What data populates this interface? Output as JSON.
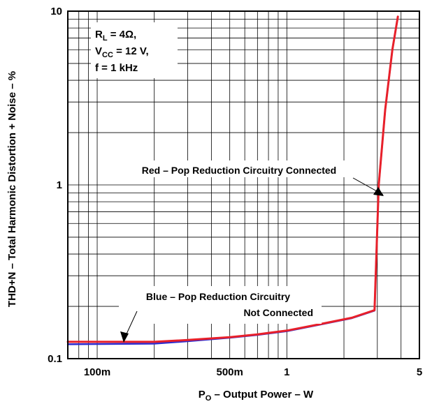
{
  "chart_data": {
    "type": "line",
    "x_scale": "log",
    "y_scale": "log",
    "xlim": [
      0.07,
      5
    ],
    "ylim": [
      0.1,
      10
    ],
    "grid": true,
    "x_ticks": [
      {
        "value": 0.1,
        "label": "100m"
      },
      {
        "value": 0.5,
        "label": "500m"
      },
      {
        "value": 1,
        "label": "1"
      },
      {
        "value": 5,
        "label": "5"
      }
    ],
    "y_ticks": [
      {
        "value": 0.1,
        "label": "0.1"
      },
      {
        "value": 1,
        "label": "1"
      },
      {
        "value": 10,
        "label": "10"
      }
    ],
    "xlabel": {
      "main": "P",
      "sub": "O",
      "rest": " – Output Power – W"
    },
    "ylabel": "THD+N – Total Harmonic Distortion + Noise – %",
    "conditions": [
      {
        "main": "R",
        "sub": "L",
        "rest": " = 4Ω,"
      },
      {
        "main": "V",
        "sub": "CC",
        "rest": " = 12 V,"
      },
      {
        "main": "f = 1 kHz",
        "sub": "",
        "rest": ""
      }
    ],
    "annotations": [
      {
        "lines": [
          "Red – Pop Reduction Circuitry Connected"
        ]
      },
      {
        "lines": [
          "Blue – Pop Reduction Circuitry",
          "Not Connected"
        ]
      }
    ],
    "series": [
      {
        "color": "#e8202a",
        "x": [
          0.07,
          0.2,
          0.3,
          0.5,
          0.7,
          1.0,
          1.5,
          2.2,
          2.9,
          3.05,
          3.3,
          3.6,
          3.85
        ],
        "y": [
          0.125,
          0.125,
          0.128,
          0.133,
          0.138,
          0.145,
          0.158,
          0.172,
          0.19,
          1.0,
          2.7,
          6.0,
          9.3
        ]
      },
      {
        "color": "#2b2bd0",
        "x": [
          0.07,
          0.2,
          0.3,
          0.5,
          0.7,
          1.0,
          1.5,
          2.2,
          2.9,
          3.05,
          3.3,
          3.6,
          3.85
        ],
        "y": [
          0.121,
          0.122,
          0.126,
          0.132,
          0.137,
          0.144,
          0.157,
          0.171,
          0.189,
          1.0,
          2.7,
          6.0,
          9.3
        ]
      }
    ]
  }
}
